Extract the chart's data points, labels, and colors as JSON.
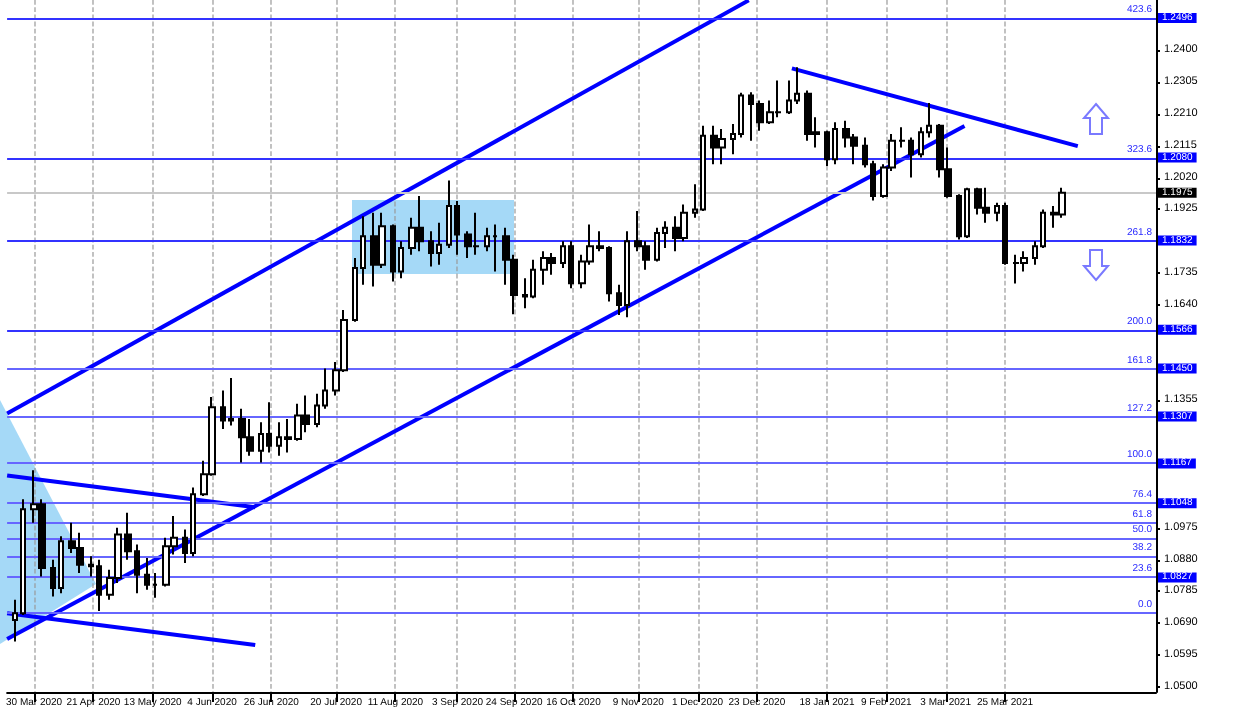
{
  "chart_data": {
    "type": "candlestick",
    "color": "#000000",
    "grid": "x",
    "marker": "none",
    "xlim": [
      "2020-03-20",
      "2021-05-20"
    ],
    "ylim": [
      1.0485,
      1.255
    ],
    "xticks": [
      {
        "value": "2020-03-30",
        "label": "30 Mar 2020"
      },
      {
        "value": "2020-04-21",
        "label": "21 Apr 2020"
      },
      {
        "value": "2020-05-13",
        "label": "13 May 2020"
      },
      {
        "value": "2020-06-04",
        "label": "4 Jun 2020"
      },
      {
        "value": "2020-06-26",
        "label": "26 Jun 2020"
      },
      {
        "value": "2020-07-20",
        "label": "20 Jul 2020"
      },
      {
        "value": "2020-08-11",
        "label": "11 Aug 2020"
      },
      {
        "value": "2020-09-03",
        "label": "3 Sep 2020"
      },
      {
        "value": "2020-09-24",
        "label": "24 Sep 2020"
      },
      {
        "value": "2020-10-16",
        "label": "16 Oct 2020"
      },
      {
        "value": "2020-11-09",
        "label": "9 Nov 2020"
      },
      {
        "value": "2020-12-01",
        "label": "1 Dec 2020"
      },
      {
        "value": "2020-12-23",
        "label": "23 Dec 2020"
      },
      {
        "value": "2021-01-18",
        "label": "18 Jan 2021"
      },
      {
        "value": "2021-02-09",
        "label": "9 Feb 2021"
      },
      {
        "value": "2021-03-03",
        "label": "3 Mar 2021"
      },
      {
        "value": "2021-03-25",
        "label": "25 Mar 2021"
      }
    ],
    "yticks": [
      {
        "value": 1.05,
        "label": "1.0500"
      },
      {
        "value": 1.0595,
        "label": "1.0595"
      },
      {
        "value": 1.069,
        "label": "1.0690"
      },
      {
        "value": 1.0785,
        "label": "1.0785"
      },
      {
        "value": 1.088,
        "label": "1.0880"
      },
      {
        "value": 1.0975,
        "label": "1.0975"
      },
      {
        "value": 1.1355,
        "label": "1.1355"
      },
      {
        "value": 1.164,
        "label": "1.1640"
      },
      {
        "value": 1.1735,
        "label": "1.1735"
      },
      {
        "value": 1.1925,
        "label": "1.1925"
      },
      {
        "value": 1.202,
        "label": "1.2020"
      },
      {
        "value": 1.2115,
        "label": "1.2115"
      },
      {
        "value": 1.221,
        "label": "1.2210"
      },
      {
        "value": 1.2305,
        "label": "1.2305"
      },
      {
        "value": 1.24,
        "label": "1.2400"
      }
    ],
    "x": [
      "2020-03-23",
      "2020-03-26",
      "2020-03-30",
      "2020-04-02",
      "2020-04-06",
      "2020-04-09",
      "2020-04-13",
      "2020-04-16",
      "2020-04-20",
      "2020-04-23",
      "2020-04-27",
      "2020-04-30",
      "2020-05-04",
      "2020-05-07",
      "2020-05-11",
      "2020-05-14",
      "2020-05-18",
      "2020-05-21",
      "2020-05-25",
      "2020-05-28",
      "2020-06-01",
      "2020-06-04",
      "2020-06-08",
      "2020-06-11",
      "2020-06-15",
      "2020-06-18",
      "2020-06-22",
      "2020-06-25",
      "2020-06-29",
      "2020-07-02",
      "2020-07-06",
      "2020-07-09",
      "2020-07-13",
      "2020-07-16",
      "2020-07-20",
      "2020-07-23",
      "2020-07-27",
      "2020-07-30",
      "2020-08-03",
      "2020-08-06",
      "2020-08-10",
      "2020-08-13",
      "2020-08-17",
      "2020-08-20",
      "2020-08-24",
      "2020-08-27",
      "2020-08-31",
      "2020-09-03",
      "2020-09-07",
      "2020-09-10",
      "2020-09-14",
      "2020-09-17",
      "2020-09-21",
      "2020-09-24",
      "2020-09-28",
      "2020-10-01",
      "2020-10-05",
      "2020-10-08",
      "2020-10-12",
      "2020-10-15",
      "2020-10-19",
      "2020-10-22",
      "2020-10-26",
      "2020-10-29",
      "2020-11-02",
      "2020-11-05",
      "2020-11-09",
      "2020-11-12",
      "2020-11-16",
      "2020-11-19",
      "2020-11-23",
      "2020-11-26",
      "2020-11-30",
      "2020-12-03",
      "2020-12-07",
      "2020-12-10",
      "2020-12-14",
      "2020-12-17",
      "2020-12-21",
      "2020-12-24",
      "2020-12-28",
      "2020-12-31",
      "2021-01-04",
      "2021-01-07",
      "2021-01-11",
      "2021-01-14",
      "2021-01-18",
      "2021-01-21",
      "2021-01-25",
      "2021-01-28",
      "2021-02-01",
      "2021-02-04",
      "2021-02-08",
      "2021-02-11",
      "2021-02-15",
      "2021-02-18",
      "2021-02-22",
      "2021-02-25",
      "2021-03-01",
      "2021-03-04",
      "2021-03-08",
      "2021-03-11",
      "2021-03-15",
      "2021-03-18",
      "2021-03-22",
      "2021-03-25",
      "2021-03-29",
      "2021-04-01",
      "2021-04-05",
      "2021-04-08",
      "2021-04-12",
      "2021-04-15"
    ],
    "ohlc": [
      [
        1.07,
        1.076,
        1.0636,
        1.072
      ],
      [
        1.072,
        1.106,
        1.0715,
        1.103
      ],
      [
        1.103,
        1.1147,
        1.099,
        1.1045
      ],
      [
        1.1045,
        1.106,
        1.083,
        1.0855
      ],
      [
        1.0855,
        1.088,
        1.077,
        1.0795
      ],
      [
        1.0795,
        1.095,
        1.078,
        1.0935
      ],
      [
        1.0935,
        1.099,
        1.09,
        1.0915
      ],
      [
        1.0915,
        1.096,
        1.084,
        1.0865
      ],
      [
        1.0865,
        1.089,
        1.083,
        1.086
      ],
      [
        1.086,
        1.088,
        1.0727,
        1.0775
      ],
      [
        1.0775,
        1.085,
        1.076,
        1.0825
      ],
      [
        1.0825,
        1.0975,
        1.081,
        1.0955
      ],
      [
        1.0955,
        1.102,
        1.088,
        1.0905
      ],
      [
        1.0905,
        1.0925,
        1.078,
        1.0835
      ],
      [
        1.0835,
        1.0885,
        1.079,
        1.0805
      ],
      [
        1.0805,
        1.084,
        1.0766,
        1.0805
      ],
      [
        1.0805,
        1.0945,
        1.08,
        1.092
      ],
      [
        1.092,
        1.101,
        1.0895,
        1.0945
      ],
      [
        1.0945,
        1.097,
        1.087,
        1.09
      ],
      [
        1.09,
        1.1095,
        1.089,
        1.1075
      ],
      [
        1.1075,
        1.1175,
        1.107,
        1.1135
      ],
      [
        1.1135,
        1.1365,
        1.113,
        1.1335
      ],
      [
        1.1335,
        1.1385,
        1.127,
        1.1295
      ],
      [
        1.1295,
        1.1422,
        1.128,
        1.13
      ],
      [
        1.13,
        1.133,
        1.117,
        1.1245
      ],
      [
        1.1245,
        1.13,
        1.119,
        1.1205
      ],
      [
        1.1205,
        1.129,
        1.117,
        1.1255
      ],
      [
        1.1255,
        1.135,
        1.12,
        1.122
      ],
      [
        1.122,
        1.129,
        1.119,
        1.1245
      ],
      [
        1.1245,
        1.13,
        1.12,
        1.124
      ],
      [
        1.124,
        1.1345,
        1.1235,
        1.131
      ],
      [
        1.131,
        1.137,
        1.126,
        1.1285
      ],
      [
        1.1285,
        1.1375,
        1.1275,
        1.134
      ],
      [
        1.134,
        1.145,
        1.133,
        1.1385
      ],
      [
        1.1385,
        1.147,
        1.137,
        1.1445
      ],
      [
        1.1445,
        1.1625,
        1.144,
        1.1595
      ],
      [
        1.1595,
        1.178,
        1.159,
        1.175
      ],
      [
        1.175,
        1.1905,
        1.17,
        1.1845
      ],
      [
        1.1845,
        1.1915,
        1.1695,
        1.176
      ],
      [
        1.176,
        1.1915,
        1.175,
        1.1875
      ],
      [
        1.1875,
        1.188,
        1.171,
        1.174
      ],
      [
        1.174,
        1.183,
        1.172,
        1.181
      ],
      [
        1.181,
        1.19,
        1.179,
        1.187
      ],
      [
        1.187,
        1.1965,
        1.18,
        1.183
      ],
      [
        1.183,
        1.186,
        1.1755,
        1.1795
      ],
      [
        1.1795,
        1.1885,
        1.176,
        1.182
      ],
      [
        1.182,
        1.2011,
        1.181,
        1.1935
      ],
      [
        1.1935,
        1.195,
        1.179,
        1.185
      ],
      [
        1.185,
        1.186,
        1.178,
        1.1815
      ],
      [
        1.1815,
        1.1915,
        1.179,
        1.1815
      ],
      [
        1.1815,
        1.187,
        1.18,
        1.1845
      ],
      [
        1.1845,
        1.188,
        1.174,
        1.1845
      ],
      [
        1.1845,
        1.187,
        1.17,
        1.1775
      ],
      [
        1.1775,
        1.179,
        1.1612,
        1.167
      ],
      [
        1.167,
        1.172,
        1.163,
        1.1665
      ],
      [
        1.1665,
        1.1775,
        1.166,
        1.1745
      ],
      [
        1.1745,
        1.18,
        1.17,
        1.178
      ],
      [
        1.178,
        1.1795,
        1.173,
        1.1765
      ],
      [
        1.1765,
        1.183,
        1.175,
        1.1815
      ],
      [
        1.1815,
        1.183,
        1.169,
        1.1705
      ],
      [
        1.1705,
        1.179,
        1.169,
        1.177
      ],
      [
        1.177,
        1.188,
        1.176,
        1.1815
      ],
      [
        1.1815,
        1.186,
        1.18,
        1.181
      ],
      [
        1.181,
        1.1815,
        1.165,
        1.1675
      ],
      [
        1.1675,
        1.17,
        1.161,
        1.164
      ],
      [
        1.164,
        1.186,
        1.1603,
        1.183
      ],
      [
        1.183,
        1.192,
        1.18,
        1.1815
      ],
      [
        1.1815,
        1.183,
        1.1745,
        1.1775
      ],
      [
        1.1775,
        1.187,
        1.177,
        1.1855
      ],
      [
        1.1855,
        1.189,
        1.181,
        1.187
      ],
      [
        1.187,
        1.1905,
        1.18,
        1.184
      ],
      [
        1.184,
        1.194,
        1.183,
        1.1915
      ],
      [
        1.1915,
        1.2,
        1.19,
        1.1925
      ],
      [
        1.1925,
        1.2175,
        1.192,
        1.2145
      ],
      [
        1.2145,
        1.2175,
        1.206,
        1.211
      ],
      [
        1.211,
        1.2165,
        1.206,
        1.2135
      ],
      [
        1.2135,
        1.218,
        1.209,
        1.215
      ],
      [
        1.215,
        1.2273,
        1.214,
        1.2265
      ],
      [
        1.2265,
        1.2275,
        1.213,
        1.224
      ],
      [
        1.224,
        1.225,
        1.216,
        1.2185
      ],
      [
        1.2185,
        1.225,
        1.218,
        1.2215
      ],
      [
        1.2215,
        1.231,
        1.22,
        1.2215
      ],
      [
        1.2215,
        1.231,
        1.221,
        1.225
      ],
      [
        1.225,
        1.2349,
        1.224,
        1.227
      ],
      [
        1.227,
        1.228,
        1.213,
        1.215
      ],
      [
        1.215,
        1.22,
        1.211,
        1.2155
      ],
      [
        1.2155,
        1.216,
        1.2055,
        1.2075
      ],
      [
        1.2075,
        1.2185,
        1.206,
        1.2165
      ],
      [
        1.2165,
        1.219,
        1.211,
        1.214
      ],
      [
        1.214,
        1.215,
        1.206,
        1.2115
      ],
      [
        1.2115,
        1.214,
        1.205,
        1.206
      ],
      [
        1.206,
        1.207,
        1.1952,
        1.1965
      ],
      [
        1.1965,
        1.206,
        1.196,
        1.205
      ],
      [
        1.205,
        1.215,
        1.204,
        1.213
      ],
      [
        1.213,
        1.217,
        1.211,
        1.213
      ],
      [
        1.213,
        1.214,
        1.202,
        1.209
      ],
      [
        1.209,
        1.217,
        1.208,
        1.2155
      ],
      [
        1.2155,
        1.2243,
        1.214,
        1.2175
      ],
      [
        1.2175,
        1.218,
        1.202,
        1.2045
      ],
      [
        1.2045,
        1.211,
        1.196,
        1.1965
      ],
      [
        1.1965,
        1.197,
        1.1835,
        1.1845
      ],
      [
        1.1845,
        1.199,
        1.184,
        1.1985
      ],
      [
        1.1985,
        1.199,
        1.191,
        1.193
      ],
      [
        1.193,
        1.199,
        1.1885,
        1.1915
      ],
      [
        1.1915,
        1.1945,
        1.189,
        1.1935
      ],
      [
        1.1935,
        1.1945,
        1.176,
        1.1765
      ],
      [
        1.1765,
        1.179,
        1.1704,
        1.1765
      ],
      [
        1.1765,
        1.18,
        1.174,
        1.178
      ],
      [
        1.178,
        1.183,
        1.176,
        1.1815
      ],
      [
        1.1815,
        1.1925,
        1.181,
        1.1915
      ],
      [
        1.1915,
        1.1935,
        1.187,
        1.191
      ],
      [
        1.191,
        1.199,
        1.19,
        1.1975
      ]
    ],
    "series": [
      {
        "type": "line",
        "color": "#0000ff",
        "x": [
          "2020-03-20",
          "2020-12-20"
        ],
        "values": [
          1.1316,
          1.2549
        ]
      },
      {
        "type": "line",
        "color": "#0000ff",
        "x": [
          "2020-03-20",
          "2021-03-10"
        ],
        "values": [
          1.0643,
          1.2174
        ]
      },
      {
        "type": "line",
        "color": "#0000ff",
        "x": [
          "2021-01-05",
          "2021-04-21"
        ],
        "values": [
          1.2346,
          1.2114
        ]
      },
      {
        "type": "line",
        "color": "#0000ff",
        "x": [
          "2020-03-20",
          "2020-06-20"
        ],
        "values": [
          1.1131,
          1.1036
        ]
      },
      {
        "type": "line",
        "color": "#0000ff",
        "x": [
          "2020-03-20",
          "2020-06-20"
        ],
        "values": [
          1.072,
          1.0625
        ]
      }
    ],
    "ref_lines": [
      {
        "axis": "y",
        "value": 1.2496,
        "label": "1.2496",
        "color": "#3333ff"
      },
      {
        "axis": "y",
        "value": 1.208,
        "label": "1.2080",
        "color": "#3333ff"
      },
      {
        "axis": "y",
        "value": 1.1832,
        "label": "1.1832",
        "color": "#3333ff"
      },
      {
        "axis": "y",
        "value": 1.1566,
        "label": "1.1566",
        "color": "#3333ff"
      },
      {
        "axis": "y",
        "value": 1.145,
        "label": "1.1450",
        "color": "#6666ff"
      },
      {
        "axis": "y",
        "value": 1.1307,
        "label": "1.1307",
        "color": "#6666ff"
      },
      {
        "axis": "y",
        "value": 1.1167,
        "label": "1.1167",
        "color": "#6666ff"
      },
      {
        "axis": "y",
        "value": 1.1048,
        "label": "1.1048",
        "color": "#6666ff"
      },
      {
        "axis": "y",
        "value": 1.099,
        "color": "#6666ff"
      },
      {
        "axis": "y",
        "value": 1.0944,
        "color": "#6666ff"
      },
      {
        "axis": "y",
        "value": 1.0892,
        "color": "#6666ff"
      },
      {
        "axis": "y",
        "value": 1.0827,
        "label": "1.0827",
        "color": "#6666ff"
      },
      {
        "axis": "y",
        "value": 1.0722,
        "color": "#6666ff"
      },
      {
        "axis": "y",
        "value": 1.1975,
        "label": "1.1975",
        "color": "#c8c8c8"
      }
    ],
    "annotations": [
      "423.6",
      "323.6",
      "261.8",
      "200.0",
      "161.8",
      "127.2",
      "100.0",
      "76.4",
      "61.8",
      "50.0",
      "38.2",
      "23.6",
      "0.0"
    ]
  }
}
